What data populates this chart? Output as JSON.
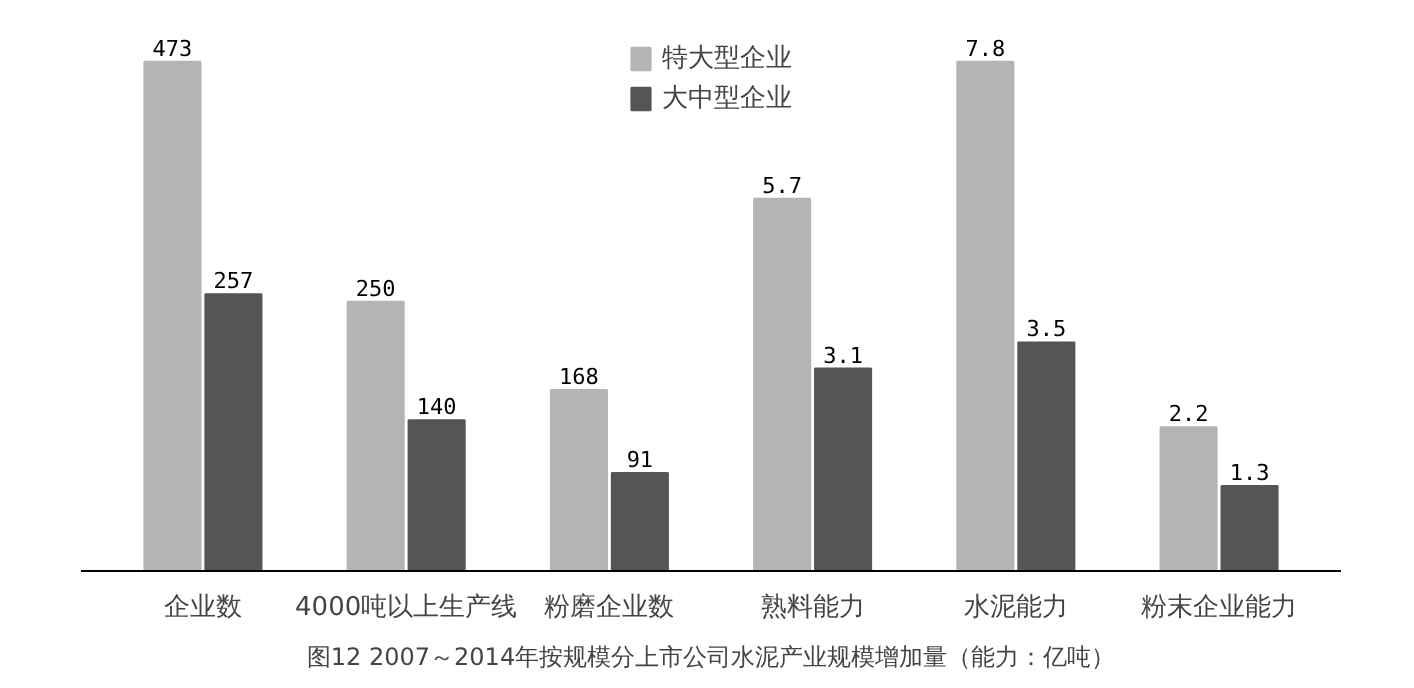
{
  "chart_data": {
    "type": "bar",
    "title": "图12 2007～2014年按规模分上市公司水泥产业规模增加量（能力：亿吨）",
    "categories": [
      "企业数",
      "4000吨以上生产线",
      "粉磨企业数",
      "熟料能力",
      "水泥能力",
      "粉末企业能力"
    ],
    "series": [
      {
        "name": "特大型企业",
        "color": "#b4b4b4",
        "values": [
          473,
          250,
          168,
          null,
          null,
          null
        ]
      },
      {
        "name": "大中型企业",
        "color": "#555555",
        "values": [
          257,
          140,
          91,
          null,
          null,
          null
        ]
      },
      {
        "color": "#b4b4b4",
        "axis": "y2",
        "values": [
          null,
          null,
          null,
          5.7,
          7.8,
          2.2
        ]
      },
      {
        "color": "#555555",
        "axis": "y2",
        "values": [
          null,
          null,
          null,
          3.1,
          3.5,
          1.3
        ]
      }
    ],
    "data_labels": true,
    "legend": "top",
    "grid": false,
    "tick_labels": "x"
  }
}
